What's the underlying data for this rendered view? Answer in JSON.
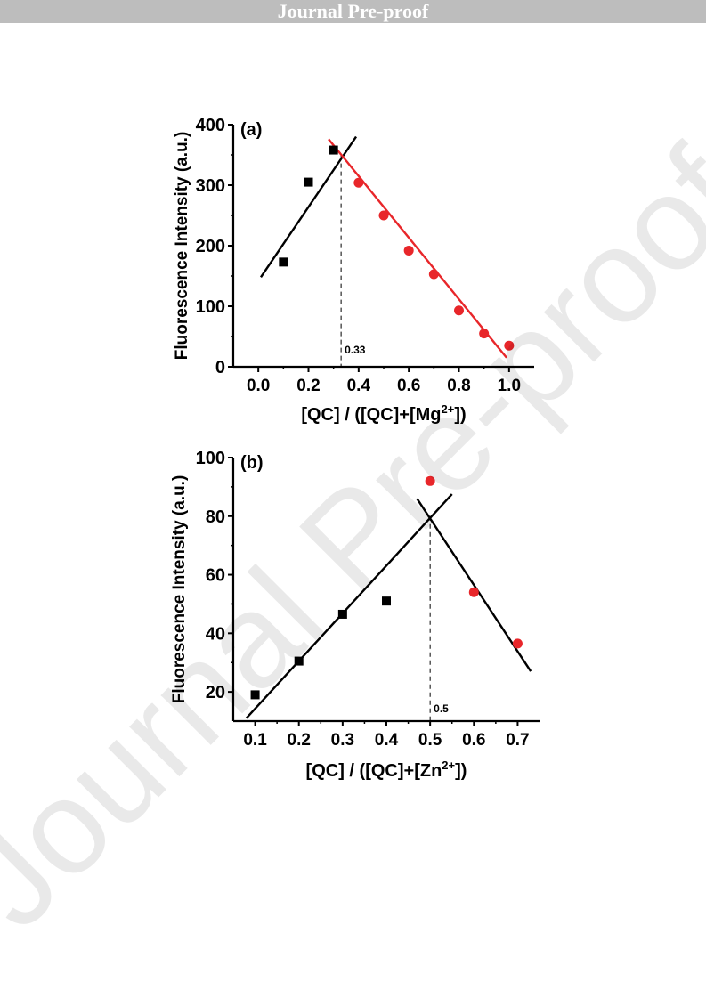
{
  "header": {
    "banner": "Journal Pre-proof"
  },
  "watermark": "Journal Pre-proof",
  "chart_data": [
    {
      "type": "scatter",
      "label": "(a)",
      "title": "",
      "xlabel": "[QC] / ([QC]+[Mg2+])",
      "xlabel_parts": {
        "main": "[QC] / ([QC]+[Mg",
        "sup": "2+",
        "end": "])"
      },
      "ylabel": "Fluorescence Intensity (a.u.)",
      "xlim": [
        -0.1,
        1.1
      ],
      "ylim": [
        0,
        400
      ],
      "xticks": [
        0.0,
        0.2,
        0.4,
        0.6,
        0.8,
        1.0
      ],
      "xtick_labels": [
        "0.0",
        "0.2",
        "0.4",
        "0.6",
        "0.8",
        "1.0"
      ],
      "yticks": [
        0,
        100,
        200,
        300,
        400
      ],
      "ytick_labels": [
        "0",
        "100",
        "200",
        "300",
        "400"
      ],
      "grid": false,
      "series": [
        {
          "marker": "square",
          "color": "#000000",
          "x": [
            0.1,
            0.2,
            0.3
          ],
          "y": [
            173,
            305,
            358
          ]
        },
        {
          "marker": "circle",
          "color": "#e8262a",
          "x": [
            0.4,
            0.5,
            0.6,
            0.7,
            0.8,
            0.9,
            1.0
          ],
          "y": [
            304,
            250,
            192,
            153,
            93,
            55,
            35
          ]
        }
      ],
      "fit_lines": [
        {
          "color": "#000000",
          "x": [
            0.01,
            0.39
          ],
          "y": [
            148,
            380
          ]
        },
        {
          "color": "#e8262a",
          "x": [
            0.28,
            0.99
          ],
          "y": [
            376,
            15
          ]
        }
      ],
      "vline": {
        "x": 0.33,
        "y_top": 349,
        "label": "0.33"
      }
    },
    {
      "type": "scatter",
      "label": "(b)",
      "title": "",
      "xlabel": "[QC] / ([QC]+[Zn2+])",
      "xlabel_parts": {
        "main": "[QC] / ([QC]+[Zn",
        "sup": "2+",
        "end": "])"
      },
      "ylabel": "Fluorescence Intensity (a.u.)",
      "xlim": [
        0.05,
        0.75
      ],
      "ylim": [
        10,
        100
      ],
      "xticks": [
        0.1,
        0.2,
        0.3,
        0.4,
        0.5,
        0.6,
        0.7
      ],
      "xtick_labels": [
        "0.1",
        "0.2",
        "0.3",
        "0.4",
        "0.5",
        "0.6",
        "0.7"
      ],
      "yticks": [
        20,
        40,
        60,
        80,
        100
      ],
      "ytick_labels": [
        "20",
        "40",
        "60",
        "80",
        "100"
      ],
      "grid": false,
      "series": [
        {
          "marker": "square",
          "color": "#000000",
          "x": [
            0.1,
            0.2,
            0.3,
            0.4
          ],
          "y": [
            19,
            30.5,
            46.5,
            51
          ]
        },
        {
          "marker": "circle",
          "color": "#e8262a",
          "x": [
            0.5,
            0.6,
            0.7
          ],
          "y": [
            92,
            54,
            36.5
          ]
        }
      ],
      "fit_lines": [
        {
          "color": "#000000",
          "x": [
            0.08,
            0.55
          ],
          "y": [
            11,
            87.5
          ]
        },
        {
          "color": "#000000",
          "x": [
            0.47,
            0.73
          ],
          "y": [
            86,
            27
          ]
        }
      ],
      "vline": {
        "x": 0.5,
        "y_top": 80,
        "label": "0.5"
      }
    }
  ]
}
